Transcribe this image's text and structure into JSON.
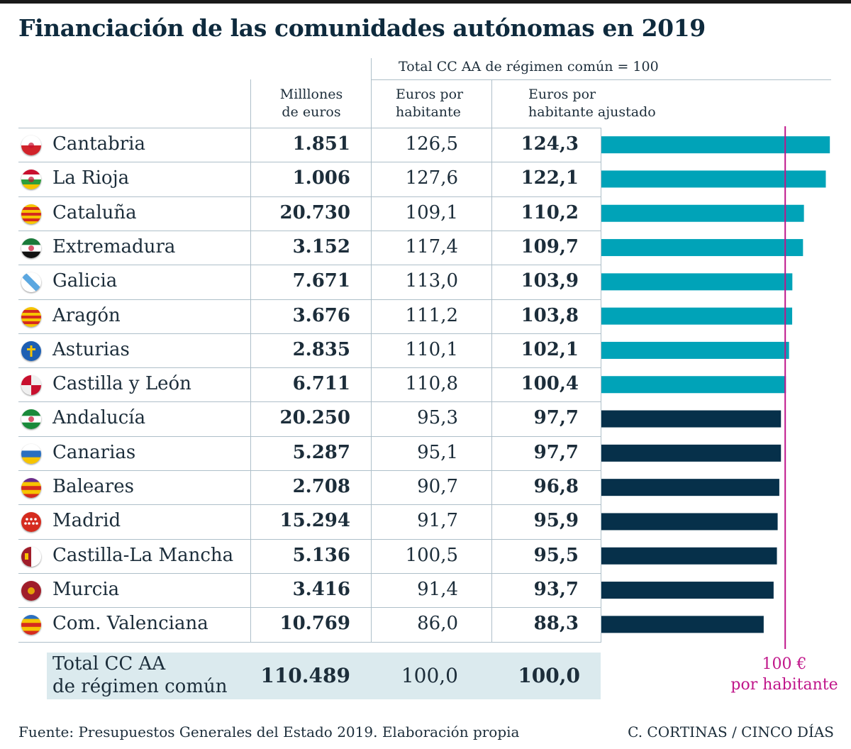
{
  "title": "Financiación de las comunidades autónomas en 2019",
  "header": {
    "span_label": "Total CC AA de régimen común = 100",
    "col_millones": [
      "Milllones",
      "de euros"
    ],
    "col_eph": [
      "Euros por",
      "habitante"
    ],
    "col_adj": [
      "Euros por",
      "habitante ajustado"
    ]
  },
  "rows": [
    {
      "name": "Cantabria",
      "mill": "1.851",
      "eph": "126,5",
      "adj": "124,3"
    },
    {
      "name": "La Rioja",
      "mill": "1.006",
      "eph": "127,6",
      "adj": "122,1"
    },
    {
      "name": "Cataluña",
      "mill": "20.730",
      "eph": "109,1",
      "adj": "110,2"
    },
    {
      "name": "Extremadura",
      "mill": "3.152",
      "eph": "117,4",
      "adj": "109,7"
    },
    {
      "name": "Galicia",
      "mill": "7.671",
      "eph": "113,0",
      "adj": "103,9"
    },
    {
      "name": "Aragón",
      "mill": "3.676",
      "eph": "111,2",
      "adj": "103,8"
    },
    {
      "name": "Asturias",
      "mill": "2.835",
      "eph": "110,1",
      "adj": "102,1"
    },
    {
      "name": "Castilla y León",
      "mill": "6.711",
      "eph": "110,8",
      "adj": "100,4"
    },
    {
      "name": "Andalucía",
      "mill": "20.250",
      "eph": "95,3",
      "adj": "97,7"
    },
    {
      "name": "Canarias",
      "mill": "5.287",
      "eph": "95,1",
      "adj": "97,7"
    },
    {
      "name": "Baleares",
      "mill": "2.708",
      "eph": "90,7",
      "adj": "96,8"
    },
    {
      "name": "Madrid",
      "mill": "15.294",
      "eph": "91,7",
      "adj": "95,9"
    },
    {
      "name": "Castilla-La Mancha",
      "mill": "5.136",
      "eph": "100,5",
      "adj": "95,5"
    },
    {
      "name": "Murcia",
      "mill": "3.416",
      "eph": "91,4",
      "adj": "93,7"
    },
    {
      "name": "Com. Valenciana",
      "mill": "10.769",
      "eph": "86,0",
      "adj": "88,3"
    }
  ],
  "total": {
    "label": [
      "Total CC AA",
      "de régimen común"
    ],
    "mill": "110.489",
    "eph": "100,0",
    "adj": "100,0"
  },
  "reference": {
    "label": [
      "100 €",
      "por habitante"
    ],
    "value": 100
  },
  "footer": {
    "source": "Fuente: Presupuestos Generales del Estado 2019. Elaboración propia",
    "credit": "C. CORTINAS / CINCO DÍAS"
  },
  "colors": {
    "above_100": "#00a3b8",
    "below_100": "#06304a",
    "reference_line": "#c0168a",
    "total_bg": "#dbeaee"
  },
  "chart_data": {
    "type": "bar",
    "orientation": "horizontal",
    "categories": [
      "Cantabria",
      "La Rioja",
      "Cataluña",
      "Extremadura",
      "Galicia",
      "Aragón",
      "Asturias",
      "Castilla y León",
      "Andalucía",
      "Canarias",
      "Baleares",
      "Madrid",
      "Castilla-La Mancha",
      "Murcia",
      "Com. Valenciana"
    ],
    "values": [
      124.3,
      122.1,
      110.2,
      109.7,
      103.9,
      103.8,
      102.1,
      100.4,
      97.7,
      97.7,
      96.8,
      95.9,
      95.5,
      93.7,
      88.3
    ],
    "reference_value": 100,
    "xlim": [
      0,
      125
    ]
  }
}
